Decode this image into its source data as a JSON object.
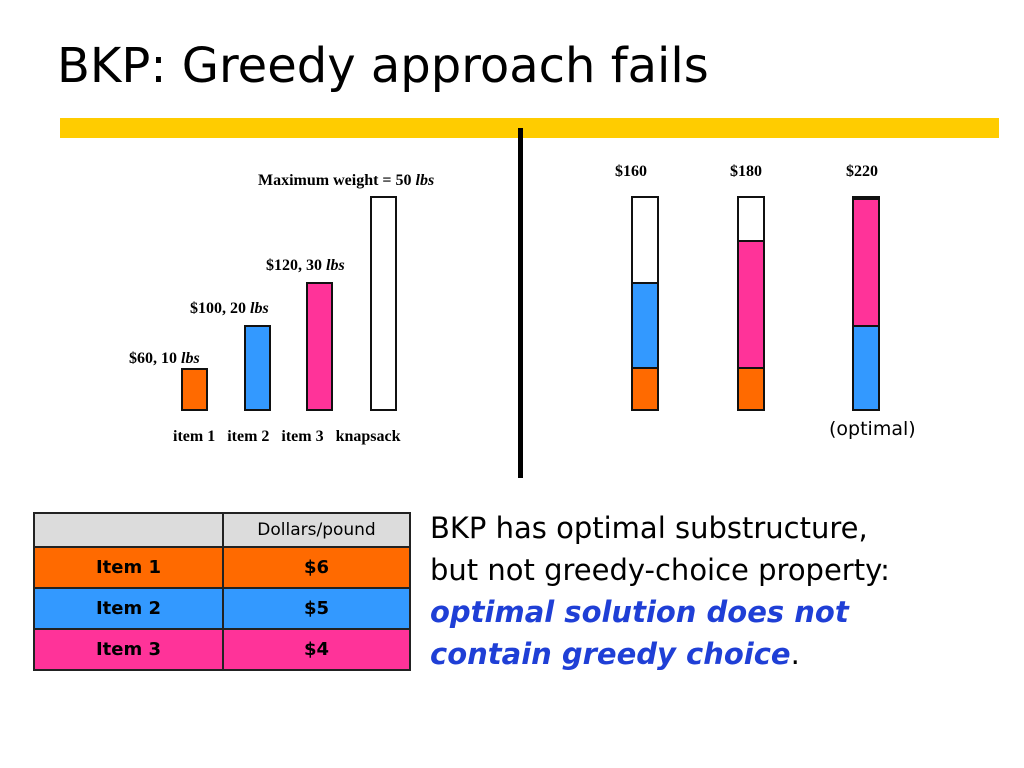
{
  "title": "BKP: Greedy approach fails",
  "colors": {
    "title_bar": "#ffcc00",
    "item1": "#ff6a00",
    "item2": "#3399ff",
    "item3": "#ff3399",
    "empty": "#ffffff",
    "emphasis": "#1f3fd6"
  },
  "left_panel": {
    "max_weight_label": "Maximum weight = 50 ",
    "max_weight_unit": "lbs",
    "items": [
      {
        "price_weight": "$60, 10 ",
        "unit": "lbs",
        "name": "item 1",
        "value": 60,
        "weight": 10
      },
      {
        "price_weight": "$100, 20 ",
        "unit": "lbs",
        "name": "item 2",
        "value": 100,
        "weight": 20
      },
      {
        "price_weight": "$120, 30 ",
        "unit": "lbs",
        "name": "item 3",
        "value": 120,
        "weight": 30
      }
    ],
    "knapsack_label": "knapsack",
    "capacity": 50
  },
  "right_panel": {
    "solutions": [
      {
        "value_label": "$160",
        "parts": [
          {
            "item": "item1",
            "weight": 10
          },
          {
            "item": "item2",
            "weight": 20
          }
        ]
      },
      {
        "value_label": "$180",
        "parts": [
          {
            "item": "item1",
            "weight": 10
          },
          {
            "item": "item3",
            "weight": 30
          }
        ]
      },
      {
        "value_label": "$220",
        "parts": [
          {
            "item": "item2",
            "weight": 20
          },
          {
            "item": "item3",
            "weight": 30
          }
        ]
      }
    ],
    "optimal_label": "(optimal)"
  },
  "table": {
    "header": [
      "",
      "Dollars/pound"
    ],
    "rows": [
      {
        "item": "Item 1",
        "ratio": "$6"
      },
      {
        "item": "Item 2",
        "ratio": "$5"
      },
      {
        "item": "Item 3",
        "ratio": "$4"
      }
    ]
  },
  "explanation": {
    "line1": "BKP has optimal substructure,",
    "line2": "but not greedy-choice property:",
    "line3": "optimal solution does not",
    "line4": "contain greedy choice",
    "period": "."
  }
}
